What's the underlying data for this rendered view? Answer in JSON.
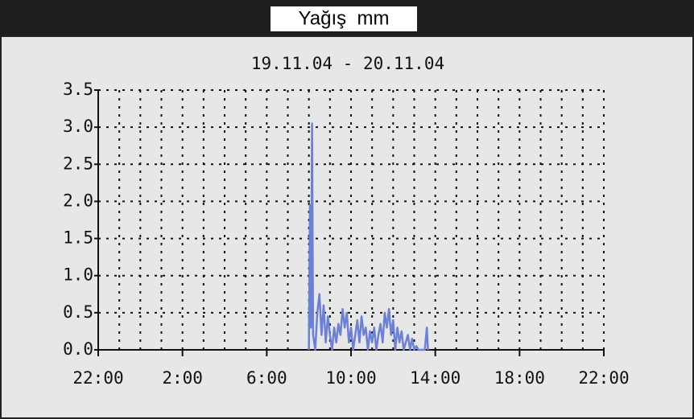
{
  "chart_data": {
    "type": "line",
    "title": "Yağış  mm",
    "subtitle": "19.11.04 - 20.11.04",
    "xlim": [
      0,
      24
    ],
    "xticks": [
      {
        "value": 0,
        "label": "22:00"
      },
      {
        "value": 4,
        "label": "2:00"
      },
      {
        "value": 8,
        "label": "6:00"
      },
      {
        "value": 12,
        "label": "10:00"
      },
      {
        "value": 16,
        "label": "14:00"
      },
      {
        "value": 20,
        "label": "18:00"
      },
      {
        "value": 24,
        "label": "22:00"
      }
    ],
    "x_minor_ticks": [
      1,
      2,
      3,
      5,
      6,
      7,
      9,
      10,
      11,
      13,
      14,
      15,
      17,
      18,
      19,
      21,
      22,
      23
    ],
    "ylim": [
      0,
      3.5
    ],
    "yticks": [
      {
        "value": 0,
        "label": "0.0"
      },
      {
        "value": 0.5,
        "label": "0.5"
      },
      {
        "value": 1,
        "label": "1.0"
      },
      {
        "value": 1.5,
        "label": "1.5"
      },
      {
        "value": 2,
        "label": "2.0"
      },
      {
        "value": 2.5,
        "label": "2.5"
      },
      {
        "value": 3,
        "label": "3.0"
      },
      {
        "value": 3.5,
        "label": "3.5"
      }
    ],
    "grid": true,
    "x": [
      10.0,
      10.05,
      10.1,
      10.15,
      10.2,
      10.3,
      10.4,
      10.5,
      10.6,
      10.7,
      10.8,
      10.9,
      11.0,
      11.1,
      11.2,
      11.3,
      11.4,
      11.5,
      11.6,
      11.7,
      11.8,
      11.9,
      12.0,
      12.1,
      12.2,
      12.3,
      12.4,
      12.5,
      12.6,
      12.7,
      12.8,
      12.9,
      13.0,
      13.1,
      13.2,
      13.3,
      13.4,
      13.5,
      13.6,
      13.7,
      13.8,
      13.9,
      14.0,
      14.1,
      14.2,
      14.3,
      14.4,
      14.5,
      14.6,
      14.7,
      14.8,
      14.9,
      15.0,
      15.1,
      15.2,
      15.5,
      15.6,
      15.65
    ],
    "series": [
      {
        "name": "Yağış",
        "color": "#6b80d6",
        "values": [
          0.0,
          1.95,
          0.3,
          3.05,
          0.2,
          0.0,
          0.5,
          0.75,
          0.2,
          0.6,
          0.1,
          0.45,
          0.2,
          0.0,
          0.3,
          0.1,
          0.35,
          0.2,
          0.55,
          0.3,
          0.5,
          0.1,
          0.3,
          0.0,
          0.2,
          0.4,
          0.1,
          0.45,
          0.2,
          0.3,
          0.0,
          0.25,
          0.1,
          0.3,
          0.0,
          0.2,
          0.35,
          0.1,
          0.5,
          0.3,
          0.55,
          0.2,
          0.4,
          0.0,
          0.3,
          0.1,
          0.25,
          0.0,
          0.1,
          0.2,
          0.0,
          0.15,
          0.0,
          0.05,
          0.0,
          0.0,
          0.3,
          0.0
        ]
      }
    ]
  }
}
